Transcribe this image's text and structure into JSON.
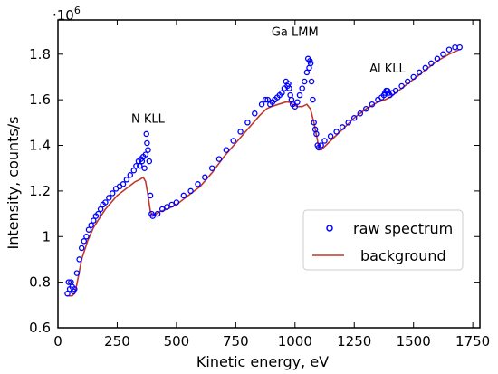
{
  "chart_data": {
    "type": "scatter",
    "xlabel": "Kinetic energy, eV",
    "ylabel": "Intensity, counts/s",
    "y_multiplier": "·10",
    "y_multiplier_exp": "6",
    "xlim": [
      0,
      1780
    ],
    "ylim": [
      0.6,
      1.95
    ],
    "xticks": [
      0,
      250,
      500,
      750,
      1000,
      1250,
      1500,
      1750
    ],
    "xtick_labels": [
      "0",
      "250",
      "500",
      "750",
      "1000",
      "1250",
      "1500",
      "1750"
    ],
    "yticks": [
      0.6,
      0.8,
      1.0,
      1.2,
      1.4,
      1.6,
      1.8
    ],
    "ytick_labels": [
      "0.6",
      "0.8",
      "1",
      "1.2",
      "1.4",
      "1.6",
      "1.8"
    ],
    "grid": false,
    "legend_position": "bottom-right",
    "annotations": [
      {
        "text": "N KLL",
        "x": 380,
        "y": 1.5
      },
      {
        "text": "Ga LMM",
        "x": 1000,
        "y": 1.88
      },
      {
        "text": "Al KLL",
        "x": 1390,
        "y": 1.72
      }
    ],
    "series": [
      {
        "name": "raw spectrum",
        "marker": "circle-open",
        "color": "#0000ff",
        "x": [
          40,
          45,
          50,
          55,
          60,
          65,
          70,
          80,
          90,
          100,
          110,
          120,
          130,
          140,
          150,
          160,
          170,
          180,
          190,
          200,
          215,
          230,
          245,
          260,
          275,
          290,
          305,
          320,
          330,
          340,
          345,
          350,
          355,
          360,
          365,
          370,
          373,
          376,
          380,
          385,
          390,
          395,
          400,
          420,
          440,
          460,
          480,
          500,
          530,
          560,
          590,
          620,
          650,
          680,
          710,
          740,
          770,
          800,
          830,
          860,
          875,
          885,
          895,
          905,
          915,
          925,
          935,
          945,
          955,
          962,
          968,
          972,
          976,
          980,
          985,
          990,
          1000,
          1010,
          1020,
          1030,
          1040,
          1050,
          1055,
          1060,
          1063,
          1066,
          1070,
          1075,
          1080,
          1085,
          1090,
          1095,
          1100,
          1110,
          1125,
          1150,
          1175,
          1200,
          1225,
          1250,
          1275,
          1300,
          1325,
          1350,
          1365,
          1375,
          1380,
          1385,
          1390,
          1395,
          1400,
          1410,
          1425,
          1450,
          1475,
          1500,
          1525,
          1550,
          1575,
          1600,
          1625,
          1650,
          1675,
          1695
        ],
        "y": [
          0.75,
          0.8,
          0.77,
          0.8,
          0.78,
          0.76,
          0.77,
          0.84,
          0.9,
          0.95,
          0.98,
          1.0,
          1.03,
          1.05,
          1.07,
          1.09,
          1.1,
          1.12,
          1.14,
          1.15,
          1.17,
          1.19,
          1.21,
          1.22,
          1.23,
          1.25,
          1.27,
          1.29,
          1.31,
          1.33,
          1.31,
          1.34,
          1.33,
          1.35,
          1.3,
          1.36,
          1.45,
          1.41,
          1.38,
          1.33,
          1.18,
          1.1,
          1.09,
          1.1,
          1.12,
          1.13,
          1.14,
          1.15,
          1.18,
          1.2,
          1.23,
          1.26,
          1.3,
          1.34,
          1.38,
          1.42,
          1.46,
          1.5,
          1.54,
          1.58,
          1.6,
          1.6,
          1.58,
          1.59,
          1.6,
          1.61,
          1.62,
          1.63,
          1.65,
          1.68,
          1.66,
          1.67,
          1.65,
          1.62,
          1.6,
          1.58,
          1.57,
          1.59,
          1.62,
          1.65,
          1.68,
          1.72,
          1.78,
          1.74,
          1.77,
          1.76,
          1.68,
          1.6,
          1.5,
          1.47,
          1.45,
          1.4,
          1.39,
          1.4,
          1.42,
          1.44,
          1.46,
          1.48,
          1.5,
          1.52,
          1.54,
          1.56,
          1.58,
          1.6,
          1.61,
          1.62,
          1.63,
          1.64,
          1.64,
          1.63,
          1.62,
          1.63,
          1.64,
          1.66,
          1.68,
          1.7,
          1.72,
          1.74,
          1.76,
          1.78,
          1.8,
          1.82,
          1.83,
          1.83
        ]
      },
      {
        "name": "background",
        "marker": "line",
        "color": "#c0392b",
        "x": [
          40,
          50,
          60,
          70,
          80,
          100,
          125,
          150,
          175,
          200,
          225,
          250,
          275,
          300,
          325,
          345,
          360,
          370,
          380,
          390,
          400,
          430,
          460,
          500,
          550,
          600,
          650,
          700,
          750,
          800,
          850,
          880,
          900,
          930,
          960,
          975,
          990,
          1010,
          1030,
          1050,
          1065,
          1080,
          1095,
          1100,
          1110,
          1150,
          1200,
          1250,
          1300,
          1350,
          1380,
          1400,
          1450,
          1500,
          1550,
          1600,
          1650,
          1695
        ],
        "y": [
          0.74,
          0.74,
          0.74,
          0.75,
          0.79,
          0.9,
          0.98,
          1.04,
          1.08,
          1.12,
          1.15,
          1.18,
          1.2,
          1.22,
          1.24,
          1.25,
          1.26,
          1.24,
          1.18,
          1.11,
          1.09,
          1.11,
          1.12,
          1.14,
          1.18,
          1.22,
          1.28,
          1.35,
          1.41,
          1.47,
          1.53,
          1.56,
          1.57,
          1.58,
          1.59,
          1.59,
          1.58,
          1.57,
          1.57,
          1.58,
          1.56,
          1.5,
          1.42,
          1.39,
          1.38,
          1.42,
          1.47,
          1.52,
          1.56,
          1.59,
          1.6,
          1.61,
          1.65,
          1.69,
          1.73,
          1.77,
          1.8,
          1.82
        ]
      }
    ]
  }
}
